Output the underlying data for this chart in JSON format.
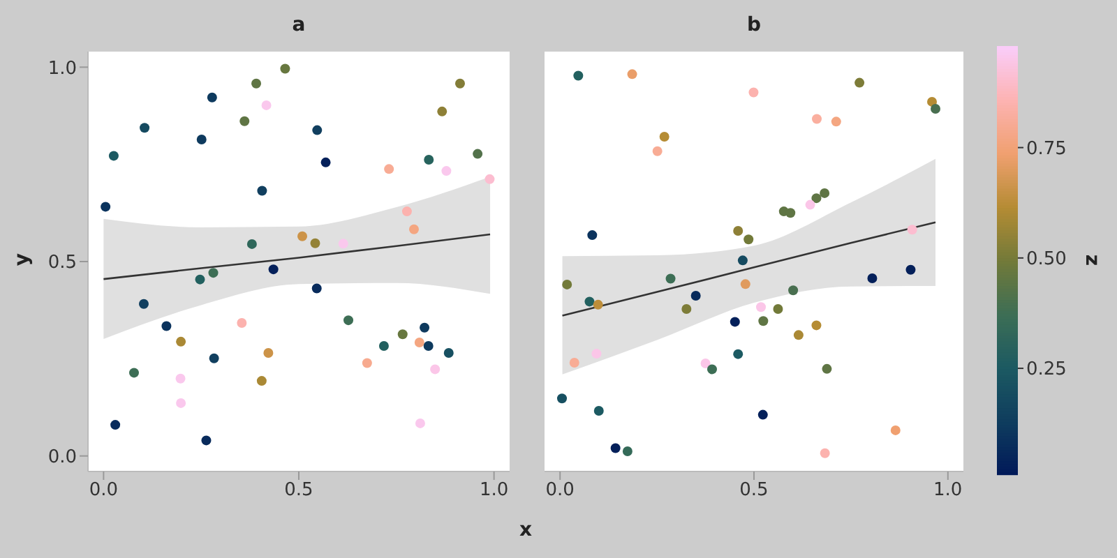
{
  "chart_data": [
    {
      "type": "scatter",
      "title": "a",
      "xlabel": "x",
      "ylabel": "y",
      "xlim": [
        -0.04,
        1.04
      ],
      "ylim": [
        -0.04,
        1.04
      ],
      "xticks": [
        {
          "value": 0,
          "label": "0.0"
        },
        {
          "value": 0.5,
          "label": "0.5"
        },
        {
          "value": 1,
          "label": "1.0"
        }
      ],
      "yticks": [
        {
          "value": 0,
          "label": "0.0"
        },
        {
          "value": 0.5,
          "label": "0.5"
        },
        {
          "value": 1,
          "label": "1.0"
        }
      ],
      "grid": false,
      "legend": false,
      "series": [
        {
          "type": "scatter",
          "marker": "circle",
          "x": [
            0.005,
            0.026,
            0.105,
            0.278,
            0.391,
            0.465,
            0.417,
            0.361,
            0.251,
            0.547,
            0.569,
            0.406,
            0.731,
            0.833,
            0.867,
            0.913,
            0.958,
            0.878,
            0.989,
            0.777,
            0.795,
            0.38,
            0.509,
            0.542,
            0.614,
            0.435,
            0.281,
            0.247,
            0.546,
            0.103,
            0.161,
            0.354,
            0.198,
            0.627,
            0.422,
            0.283,
            0.078,
            0.197,
            0.405,
            0.198,
            0.675,
            0.718,
            0.766,
            0.809,
            0.822,
            0.832,
            0.884,
            0.849,
            0.811,
            0.03,
            0.263
          ],
          "values": [
            0.641,
            0.772,
            0.844,
            0.922,
            0.958,
            0.996,
            0.902,
            0.861,
            0.814,
            0.838,
            0.755,
            0.682,
            0.738,
            0.762,
            0.886,
            0.958,
            0.777,
            0.733,
            0.712,
            0.629,
            0.583,
            0.545,
            0.565,
            0.547,
            0.546,
            0.48,
            0.471,
            0.454,
            0.431,
            0.391,
            0.334,
            0.342,
            0.294,
            0.349,
            0.265,
            0.251,
            0.214,
            0.199,
            0.193,
            0.136,
            0.239,
            0.283,
            0.313,
            0.292,
            0.33,
            0.283,
            0.265,
            0.223,
            0.084,
            0.08,
            0.04
          ],
          "colors": [
            "#0b335d",
            "#1c5a62",
            "#154a60",
            "#0e3a5e",
            "#5f7544",
            "#67773f",
            "#fac8ed",
            "#5f7544",
            "#0e3a5e",
            "#113f5f",
            "#04205a",
            "#113f5f",
            "#f8ac95",
            "#27635d",
            "#8e8037",
            "#837d38",
            "#53724b",
            "#fac8ed",
            "#fcbdd0",
            "#fcb2ae",
            "#f4a681",
            "#2f675a",
            "#cc9348",
            "#948236",
            "#fac8ed",
            "#04205a",
            "#3d6e55",
            "#22605f",
            "#082b5c",
            "#113f5f",
            "#0b335d",
            "#fcb2ae",
            "#aa8935",
            "#3d6e55",
            "#cc9348",
            "#113f5f",
            "#3d6e55",
            "#fac8ed",
            "#aa8935",
            "#fac8ed",
            "#f7aa8f",
            "#22605f",
            "#67773f",
            "#f4a681",
            "#0e3a5e",
            "#0e3a5e",
            "#175061",
            "#fbc6e8",
            "#fac8ed",
            "#082b5c",
            "#082b5c"
          ]
        },
        {
          "type": "line",
          "color": "#333333",
          "x": [
            0,
            0.25,
            0.5,
            0.75,
            0.99
          ],
          "values": [
            0.455,
            0.483,
            0.51,
            0.54,
            0.57
          ],
          "lower": [
            0.301,
            0.388,
            0.442,
            0.445,
            0.417
          ],
          "upper": [
            0.61,
            0.588,
            0.59,
            0.64,
            0.718
          ]
        }
      ]
    },
    {
      "type": "scatter",
      "title": "b",
      "xlim": [
        -0.04,
        1.04
      ],
      "ylim": [
        -0.04,
        1.04
      ],
      "tick_labels": "x",
      "xticks": [
        {
          "value": 0,
          "label": "0.0"
        },
        {
          "value": 0.5,
          "label": "0.5"
        },
        {
          "value": 1,
          "label": "1.0"
        }
      ],
      "grid": false,
      "legend": false,
      "clabel": "z",
      "clim": [
        0.01,
        0.98
      ],
      "cticks": [
        0.25,
        {
          "value": 0.5,
          "label": "0.50"
        },
        0.75
      ],
      "series": [
        {
          "type": "scatter",
          "marker": "circle",
          "x": [
            0.047,
            0.186,
            0.499,
            0.772,
            0.959,
            0.968,
            0.662,
            0.712,
            0.269,
            0.251,
            0.682,
            0.661,
            0.645,
            0.577,
            0.594,
            0.083,
            0.459,
            0.486,
            0.908,
            0.471,
            0.805,
            0.904,
            0.018,
            0.285,
            0.478,
            0.601,
            0.076,
            0.098,
            0.35,
            0.326,
            0.562,
            0.518,
            0.451,
            0.524,
            0.661,
            0.615,
            0.037,
            0.094,
            0.375,
            0.392,
            0.459,
            0.688,
            0.005,
            0.1,
            0.523,
            0.143,
            0.174,
            0.865,
            0.683
          ],
          "values": [
            0.978,
            0.982,
            0.935,
            0.96,
            0.911,
            0.893,
            0.867,
            0.86,
            0.821,
            0.784,
            0.676,
            0.663,
            0.646,
            0.629,
            0.625,
            0.568,
            0.579,
            0.557,
            0.582,
            0.503,
            0.457,
            0.479,
            0.441,
            0.456,
            0.442,
            0.426,
            0.397,
            0.389,
            0.412,
            0.378,
            0.378,
            0.383,
            0.345,
            0.347,
            0.336,
            0.311,
            0.24,
            0.263,
            0.238,
            0.223,
            0.262,
            0.224,
            0.148,
            0.116,
            0.106,
            0.02,
            0.012,
            0.066,
            0.007
          ],
          "colors": [
            "#22605f",
            "#ea9e69",
            "#fcb2ae",
            "#7d7c38",
            "#b58c34",
            "#496f50",
            "#faaf9f",
            "#f4a681",
            "#b58c34",
            "#f8ac95",
            "#5f7544",
            "#5f7544",
            "#fbc6e8",
            "#5f7544",
            "#5f7544",
            "#0b335d",
            "#8e8037",
            "#727a39",
            "#fcbdd0",
            "#154a60",
            "#04205a",
            "#04205a",
            "#727a39",
            "#3d6e55",
            "#e09b5e",
            "#496f50",
            "#22605f",
            "#bd8e3a",
            "#082b5c",
            "#7d7c38",
            "#727a39",
            "#fbc6e8",
            "#04205a",
            "#5f7544",
            "#b58c34",
            "#aa8935",
            "#f8ac95",
            "#fbc6e8",
            "#fbc6e8",
            "#3d6e55",
            "#1c5a62",
            "#5f7544",
            "#175061",
            "#1c5a62",
            "#04205a",
            "#04205a",
            "#346a58",
            "#f0a070",
            "#fcb2ae"
          ]
        },
        {
          "type": "line",
          "color": "#333333",
          "x": [
            0.006,
            0.25,
            0.5,
            0.75,
            0.968
          ],
          "values": [
            0.361,
            0.422,
            0.485,
            0.548,
            0.601
          ],
          "lower": [
            0.21,
            0.298,
            0.394,
            0.436,
            0.437
          ],
          "upper": [
            0.514,
            0.516,
            0.541,
            0.652,
            0.764
          ]
        }
      ]
    }
  ]
}
